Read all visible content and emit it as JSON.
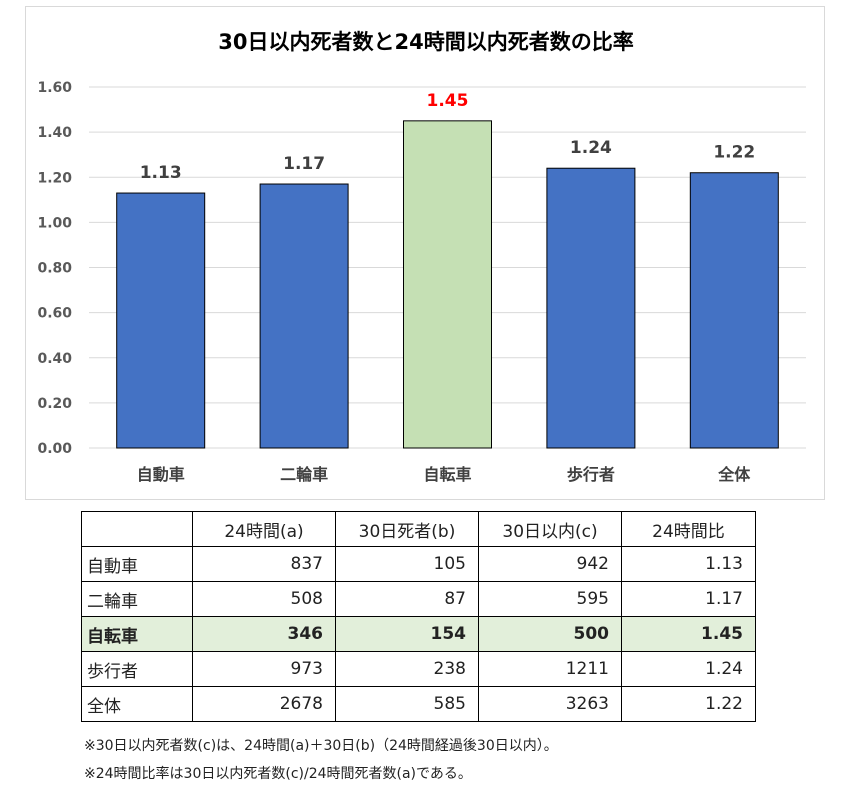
{
  "chart_data": {
    "type": "bar",
    "title": "30日以内死者数と24時間以内死者数の比率",
    "categories": [
      "自動車",
      "二輪車",
      "自転車",
      "歩行者",
      "全体"
    ],
    "values": [
      1.13,
      1.17,
      1.45,
      1.24,
      1.22
    ],
    "value_labels": [
      "1.13",
      "1.17",
      "1.45",
      "1.24",
      "1.22"
    ],
    "highlight_index": 2,
    "ylim": [
      0,
      1.6
    ],
    "yticks": [
      "0.00",
      "0.20",
      "0.40",
      "0.60",
      "0.80",
      "1.00",
      "1.20",
      "1.40",
      "1.60"
    ],
    "xlabel": "",
    "ylabel": "",
    "grid": true,
    "colors": {
      "bar": "#4472c4",
      "highlight_bar": "#c5e0b4",
      "label": "#404040",
      "highlight_label": "#ff0000",
      "grid": "#d9d9d9"
    }
  },
  "table": {
    "headers": [
      "",
      "24時間(a)",
      "30日死者(b)",
      "30日以内(c)",
      "24時間比"
    ],
    "rows": [
      [
        "自動車",
        "837",
        "105",
        "942",
        "1.13"
      ],
      [
        "二輪車",
        "508",
        "87",
        "595",
        "1.17"
      ],
      [
        "自転車",
        "346",
        "154",
        "500",
        "1.45"
      ],
      [
        "歩行者",
        "973",
        "238",
        "1211",
        "1.24"
      ],
      [
        "全体",
        "2678",
        "585",
        "3263",
        "1.22"
      ]
    ],
    "highlight_row": 2,
    "highlight_color": "#e2efda"
  },
  "notes": [
    "※30日以内死者数(c)は、24時間(a)＋30日(b)（24時間経過後30日以内）。",
    "※24時間比率は30日以内死者数(c)/24時間死者数(a)である。"
  ]
}
